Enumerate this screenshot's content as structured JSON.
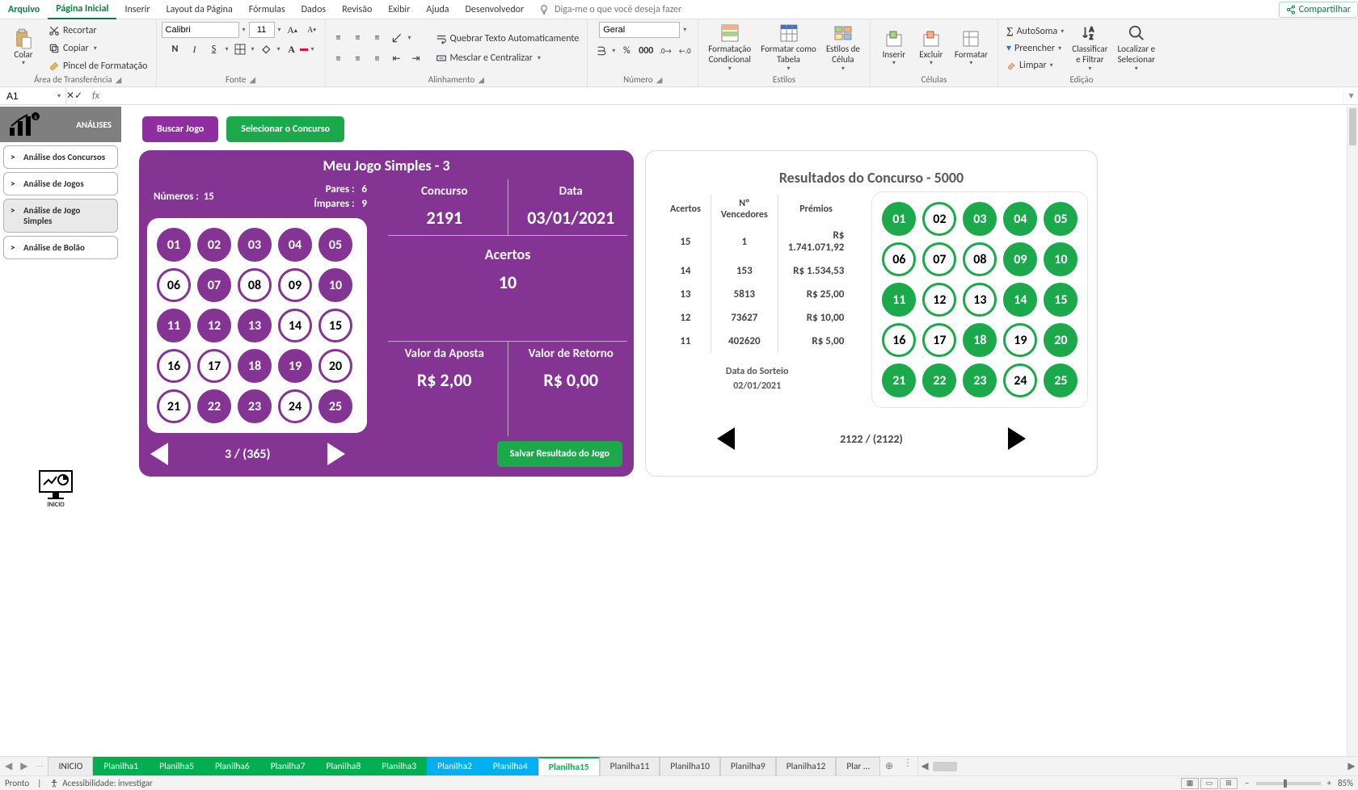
{
  "menu": {
    "file": "Arquivo",
    "tabs": [
      "Página Inicial",
      "Inserir",
      "Layout da Página",
      "Fórmulas",
      "Dados",
      "Revisão",
      "Exibir",
      "Ajuda",
      "Desenvolvedor"
    ],
    "activeIndex": 0,
    "tellme": "Diga-me o que você deseja fazer",
    "share": "Compartilhar"
  },
  "ribbon": {
    "clipboard": {
      "paste": "Colar",
      "cut": "Recortar",
      "copy": "Copiar",
      "painter": "Pincel de Formatação",
      "group": "Área de Transferência"
    },
    "font": {
      "name": "Calibri",
      "size": "11",
      "group": "Fonte"
    },
    "alignment": {
      "wrap": "Quebrar Texto Automaticamente",
      "merge": "Mesclar e Centralizar",
      "group": "Alinhamento"
    },
    "number": {
      "format": "Geral",
      "group": "Número"
    },
    "styles": {
      "cond": "Formatação\nCondicional",
      "table": "Formatar como\nTabela",
      "cell": "Estilos de\nCélula",
      "group": "Estilos"
    },
    "cells": {
      "insert": "Inserir",
      "delete": "Excluir",
      "format": "Formatar",
      "group": "Células"
    },
    "editing": {
      "autosum": "AutoSoma",
      "fill": "Preencher",
      "clear": "Limpar",
      "sort": "Classificar\ne Filtrar",
      "find": "Localizar e\nSelecionar",
      "group": "Edição"
    }
  },
  "formulaBar": {
    "name": "A1",
    "formula": ""
  },
  "sidebar": {
    "header": "ANÁLISES",
    "buttons": [
      "Análise dos Concursos",
      "Análise de Jogos",
      "Análise de Jogo Simples",
      "Análise de Bolão"
    ],
    "activeIndex": 2,
    "inicioLabel": "INICIO"
  },
  "topButtons": {
    "search": "Buscar Jogo",
    "select": "Selecionar o Concurso"
  },
  "leftPanel": {
    "title": "Meu Jogo Simples - 3",
    "numerosLabel": "Números :",
    "numerosVal": "15",
    "paresLabel": "Pares :",
    "paresVal": "6",
    "imparesLabel": "Ímpares :",
    "imparesVal": "9",
    "concursoLabel": "Concurso",
    "concursoVal": "2191",
    "dataLabel": "Data",
    "dataVal": "03/01/2021",
    "acertosLabel": "Acertos",
    "acertosVal": "10",
    "apostaLabel": "Valor da Aposta",
    "apostaVal": "R$ 2,00",
    "retornoLabel": "Valor de Retorno",
    "retornoVal": "R$ 0,00",
    "counter": "3 / (365)",
    "save": "Salvar Resultado do Jogo",
    "balls": [
      {
        "n": "01",
        "s": true
      },
      {
        "n": "02",
        "s": true
      },
      {
        "n": "03",
        "s": true
      },
      {
        "n": "04",
        "s": true
      },
      {
        "n": "05",
        "s": true
      },
      {
        "n": "06",
        "s": false
      },
      {
        "n": "07",
        "s": true
      },
      {
        "n": "08",
        "s": false
      },
      {
        "n": "09",
        "s": false
      },
      {
        "n": "10",
        "s": true
      },
      {
        "n": "11",
        "s": true
      },
      {
        "n": "12",
        "s": true
      },
      {
        "n": "13",
        "s": true
      },
      {
        "n": "14",
        "s": false
      },
      {
        "n": "15",
        "s": false
      },
      {
        "n": "16",
        "s": false
      },
      {
        "n": "17",
        "s": false
      },
      {
        "n": "18",
        "s": true
      },
      {
        "n": "19",
        "s": true
      },
      {
        "n": "20",
        "s": false
      },
      {
        "n": "21",
        "s": false
      },
      {
        "n": "22",
        "s": true
      },
      {
        "n": "23",
        "s": true
      },
      {
        "n": "24",
        "s": false
      },
      {
        "n": "25",
        "s": true
      }
    ]
  },
  "rightPanel": {
    "title": "Resultados do Concurso - 5000",
    "cols": {
      "acertos": "Acertos",
      "venc": "Nº Vencedores",
      "prem": "Prémios"
    },
    "rows": [
      {
        "a": "15",
        "v": "1",
        "p": "R$ 1.741.071,92"
      },
      {
        "a": "14",
        "v": "153",
        "p": "R$ 1.534,53"
      },
      {
        "a": "13",
        "v": "5813",
        "p": "R$ 25,00"
      },
      {
        "a": "12",
        "v": "73627",
        "p": "R$ 10,00"
      },
      {
        "a": "11",
        "v": "402620",
        "p": "R$ 5,00"
      }
    ],
    "dateLabel": "Data do Sorteio",
    "dateVal": "02/01/2021",
    "counter": "2122 / (2122)",
    "balls": [
      {
        "n": "01",
        "s": true
      },
      {
        "n": "02",
        "s": false
      },
      {
        "n": "03",
        "s": true
      },
      {
        "n": "04",
        "s": true
      },
      {
        "n": "05",
        "s": true
      },
      {
        "n": "06",
        "s": false
      },
      {
        "n": "07",
        "s": false
      },
      {
        "n": "08",
        "s": false
      },
      {
        "n": "09",
        "s": true
      },
      {
        "n": "10",
        "s": true
      },
      {
        "n": "11",
        "s": true
      },
      {
        "n": "12",
        "s": false
      },
      {
        "n": "13",
        "s": false
      },
      {
        "n": "14",
        "s": true
      },
      {
        "n": "15",
        "s": true
      },
      {
        "n": "16",
        "s": false
      },
      {
        "n": "17",
        "s": false
      },
      {
        "n": "18",
        "s": true
      },
      {
        "n": "19",
        "s": false
      },
      {
        "n": "20",
        "s": true
      },
      {
        "n": "21",
        "s": true
      },
      {
        "n": "22",
        "s": true
      },
      {
        "n": "23",
        "s": true
      },
      {
        "n": "24",
        "s": false
      },
      {
        "n": "25",
        "s": true
      }
    ]
  },
  "sheets": {
    "list": [
      {
        "name": "INICIO",
        "cls": ""
      },
      {
        "name": "Planilha1",
        "cls": "green"
      },
      {
        "name": "Planilha5",
        "cls": "green"
      },
      {
        "name": "Planilha6",
        "cls": "green"
      },
      {
        "name": "Planilha7",
        "cls": "green"
      },
      {
        "name": "Planilha8",
        "cls": "green"
      },
      {
        "name": "Planilha3",
        "cls": "green"
      },
      {
        "name": "Planilha2",
        "cls": "blue"
      },
      {
        "name": "Planilha4",
        "cls": "blue"
      },
      {
        "name": "Planilha15",
        "cls": "activeTab"
      },
      {
        "name": "Planilha11",
        "cls": ""
      },
      {
        "name": "Planilha10",
        "cls": ""
      },
      {
        "name": "Planilha9",
        "cls": ""
      },
      {
        "name": "Planilha12",
        "cls": ""
      },
      {
        "name": "Plar …",
        "cls": ""
      }
    ]
  },
  "status": {
    "ready": "Pronto",
    "access": "Acessibilidade: investigar",
    "zoom": "85%"
  },
  "colors": {
    "excelGreen": "#107c41",
    "purple": "#843594",
    "btnPurple": "#8e2ea1",
    "green": "#1ba94c",
    "tabGreen": "#00b050",
    "tabBlue": "#00b0f0"
  }
}
